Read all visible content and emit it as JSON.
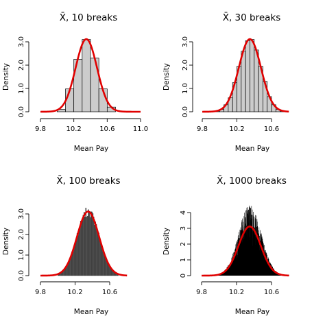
{
  "chart_data": [
    {
      "type": "bar",
      "title": "X̄, 10 breaks",
      "xlabel": "Mean Pay",
      "ylabel": "Density",
      "xlim": [
        9.8,
        11.0
      ],
      "ylim": [
        0,
        3.0
      ],
      "xticks": [
        "9.8",
        "10.2",
        "10.6",
        "11.0"
      ],
      "yticks": [
        "0.0",
        "1.0",
        "2.0",
        "3.0"
      ],
      "bar_color": "#cccccc",
      "bins": [
        {
          "x0": 10.0,
          "x1": 10.1,
          "y": 0.1
        },
        {
          "x0": 10.1,
          "x1": 10.2,
          "y": 0.98
        },
        {
          "x0": 10.2,
          "x1": 10.3,
          "y": 2.25
        },
        {
          "x0": 10.3,
          "x1": 10.4,
          "y": 3.1
        },
        {
          "x0": 10.4,
          "x1": 10.5,
          "y": 2.3
        },
        {
          "x0": 10.5,
          "x1": 10.6,
          "y": 0.98
        },
        {
          "x0": 10.6,
          "x1": 10.7,
          "y": 0.2
        }
      ],
      "curve": {
        "type": "normal_density",
        "mean": 10.35,
        "sd": 0.128,
        "color": "#e00000"
      }
    },
    {
      "type": "bar",
      "title": "X̄, 30 breaks",
      "xlabel": "Mean Pay",
      "ylabel": "Density",
      "xlim": [
        9.8,
        10.8
      ],
      "ylim": [
        0,
        3.0
      ],
      "xticks": [
        "9.8",
        "10.2",
        "10.6"
      ],
      "yticks": [
        "0.0",
        "1.0",
        "2.0",
        "3.0"
      ],
      "bar_color": "#cccccc",
      "bins": [
        {
          "x0": 9.95,
          "x1": 10.0,
          "y": 0.03
        },
        {
          "x0": 10.0,
          "x1": 10.05,
          "y": 0.1
        },
        {
          "x0": 10.05,
          "x1": 10.1,
          "y": 0.3
        },
        {
          "x0": 10.1,
          "x1": 10.15,
          "y": 0.6
        },
        {
          "x0": 10.15,
          "x1": 10.2,
          "y": 1.25
        },
        {
          "x0": 10.2,
          "x1": 10.25,
          "y": 1.95
        },
        {
          "x0": 10.25,
          "x1": 10.3,
          "y": 2.6
        },
        {
          "x0": 10.3,
          "x1": 10.35,
          "y": 3.05
        },
        {
          "x0": 10.35,
          "x1": 10.4,
          "y": 3.1
        },
        {
          "x0": 10.4,
          "x1": 10.45,
          "y": 2.65
        },
        {
          "x0": 10.45,
          "x1": 10.5,
          "y": 1.95
        },
        {
          "x0": 10.5,
          "x1": 10.55,
          "y": 1.3
        },
        {
          "x0": 10.55,
          "x1": 10.6,
          "y": 0.65
        },
        {
          "x0": 10.6,
          "x1": 10.65,
          "y": 0.3
        },
        {
          "x0": 10.65,
          "x1": 10.7,
          "y": 0.1
        },
        {
          "x0": 10.7,
          "x1": 10.75,
          "y": 0.03
        }
      ],
      "curve": {
        "type": "normal_density",
        "mean": 10.35,
        "sd": 0.128,
        "color": "#e00000"
      }
    },
    {
      "type": "bar",
      "title": "X̄, 100 breaks",
      "xlabel": "Mean Pay",
      "ylabel": "Density",
      "xlim": [
        9.8,
        10.8
      ],
      "ylim": [
        0,
        3.0
      ],
      "xticks": [
        "9.8",
        "10.2",
        "10.6"
      ],
      "yticks": [
        "0.0",
        "1.0",
        "2.0",
        "3.0"
      ],
      "bar_color": "#555555",
      "bins": [
        {
          "x0": 10.0,
          "x1": 10.7,
          "step": 0.01,
          "mean": 10.35,
          "sd": 0.128,
          "noise": 0.08
        }
      ],
      "curve": {
        "type": "normal_density",
        "mean": 10.35,
        "sd": 0.128,
        "color": "#e00000"
      }
    },
    {
      "type": "bar",
      "title": "X̄, 1000 breaks",
      "xlabel": "Mean Pay",
      "ylabel": "Density",
      "xlim": [
        9.8,
        10.8
      ],
      "ylim": [
        0,
        4.0
      ],
      "xticks": [
        "9.8",
        "10.2",
        "10.6"
      ],
      "yticks": [
        "0",
        "1",
        "2",
        "3",
        "4"
      ],
      "bar_color": "#000000",
      "bins": [
        {
          "x0": 9.9,
          "x1": 10.8,
          "step": 0.001,
          "mean": 10.35,
          "sd": 0.128,
          "noise": 0.45
        }
      ],
      "curve": {
        "type": "normal_density",
        "mean": 10.35,
        "sd": 0.128,
        "color": "#e00000"
      }
    }
  ]
}
